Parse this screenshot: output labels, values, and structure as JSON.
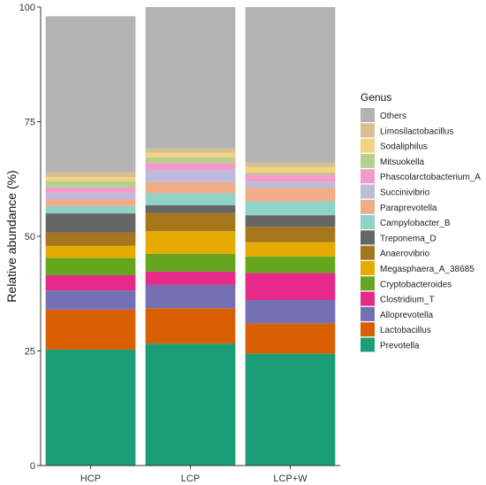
{
  "chart_data": {
    "type": "bar",
    "stacked": true,
    "ylabel": "Relative abundance (%)",
    "xlabel": "",
    "ylim": [
      0,
      100
    ],
    "yticks": [
      "0",
      "25",
      "50",
      "75",
      "100"
    ],
    "categories": [
      "HCP",
      "LCP",
      "LCP+W"
    ],
    "legend_title": "Genus",
    "legend_position": "right",
    "series": [
      {
        "name": "Prevotella",
        "color": "#1b9e77",
        "values": [
          25.3,
          26.6,
          24.4
        ]
      },
      {
        "name": "Lactobacillus",
        "color": "#d95f02",
        "values": [
          8.7,
          7.7,
          6.6
        ]
      },
      {
        "name": "Alloprevotella",
        "color": "#7570b3",
        "values": [
          4.2,
          5.1,
          5.1
        ]
      },
      {
        "name": "Clostridium_T",
        "color": "#e7298a",
        "values": [
          3.3,
          2.9,
          5.9
        ]
      },
      {
        "name": "Cryptobacteroides",
        "color": "#66a61e",
        "values": [
          3.8,
          3.9,
          3.6
        ]
      },
      {
        "name": "Megasphaera_A_38685",
        "color": "#e6ab02",
        "values": [
          2.6,
          4.9,
          3.1
        ]
      },
      {
        "name": "Anaerovibrio",
        "color": "#a6761d",
        "values": [
          2.9,
          4.0,
          3.4
        ]
      },
      {
        "name": "Treponema_D",
        "color": "#666666",
        "values": [
          4.2,
          1.7,
          2.5
        ]
      },
      {
        "name": "Campylobacter_B",
        "color": "#8dd3c7",
        "values": [
          1.6,
          2.6,
          3.0
        ]
      },
      {
        "name": "Paraprevotella",
        "color": "#efac86",
        "values": [
          1.5,
          2.4,
          3.0
        ]
      },
      {
        "name": "Succinivibrio",
        "color": "#bebada",
        "values": [
          1.4,
          2.7,
          1.3
        ]
      },
      {
        "name": "Phascolarctobacterium_A",
        "color": "#f49ac8",
        "values": [
          1.1,
          1.5,
          1.6
        ]
      },
      {
        "name": "Mitsuokella",
        "color": "#b3d08e",
        "values": [
          1.5,
          1.2,
          0.4
        ]
      },
      {
        "name": "Sodaliphilus",
        "color": "#f3d37f",
        "values": [
          0.8,
          1.0,
          1.2
        ]
      },
      {
        "name": "Limosilactobacillus",
        "color": "#d6bf91",
        "values": [
          1.1,
          1.0,
          1.0
        ]
      },
      {
        "name": "Others",
        "color": "#b3b3b3",
        "values": [
          34.0,
          30.8,
          33.9
        ]
      }
    ],
    "legend_order": [
      "Others",
      "Limosilactobacillus",
      "Sodaliphilus",
      "Mitsuokella",
      "Phascolarctobacterium_A",
      "Succinivibrio",
      "Paraprevotella",
      "Campylobacter_B",
      "Treponema_D",
      "Anaerovibrio",
      "Megasphaera_A_38685",
      "Cryptobacteroides",
      "Clostridium_T",
      "Alloprevotella",
      "Lactobacillus",
      "Prevotella"
    ]
  }
}
